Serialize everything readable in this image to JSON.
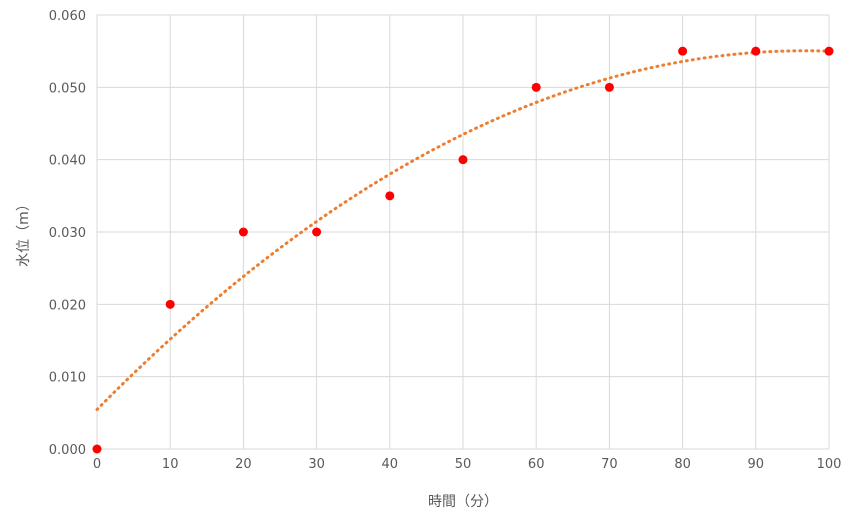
{
  "chart_data": {
    "type": "scatter",
    "xlabel": "時間（分）",
    "ylabel": "水位（m）",
    "xlim": [
      0,
      100
    ],
    "ylim": [
      0,
      0.06
    ],
    "x_ticks": [
      "0",
      "10",
      "20",
      "30",
      "40",
      "50",
      "60",
      "70",
      "80",
      "90",
      "100"
    ],
    "y_ticks": [
      "0.000",
      "0.010",
      "0.020",
      "0.030",
      "0.040",
      "0.050",
      "0.060"
    ],
    "grid": true,
    "series": [
      {
        "x": [
          0,
          10,
          20,
          30,
          40,
          50,
          60,
          70,
          80,
          90,
          100
        ],
        "y": [
          0.0,
          0.02,
          0.03,
          0.03,
          0.035,
          0.04,
          0.05,
          0.05,
          0.055,
          0.055,
          0.055
        ],
        "color": "#ff0000"
      }
    ],
    "trendline": {
      "type": "polynomial",
      "color": "#ed7d31",
      "style": "dotted"
    }
  }
}
